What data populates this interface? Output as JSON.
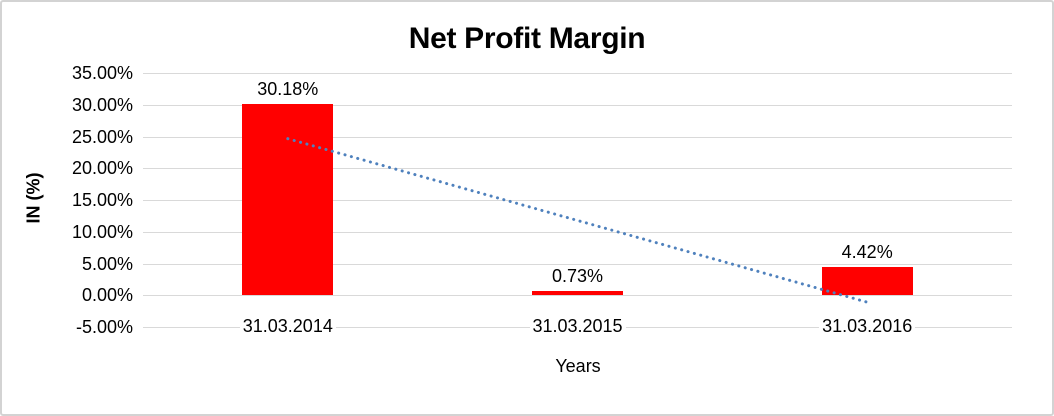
{
  "chart_data": {
    "type": "bar",
    "title": "Net Profit Margin",
    "xlabel": "Years",
    "ylabel": "IN (%)",
    "categories": [
      "31.03.2014",
      "31.03.2015",
      "31.03.2016"
    ],
    "values": [
      30.18,
      0.73,
      4.42
    ],
    "data_labels": [
      "30.18%",
      "0.73%",
      "4.42%"
    ],
    "y_tick_labels": [
      "35.00%",
      "30.00%",
      "25.00%",
      "20.00%",
      "15.00%",
      "10.00%",
      "5.00%",
      "0.00%",
      "-5.00%"
    ],
    "y_tick_values": [
      35,
      30,
      25,
      20,
      15,
      10,
      5,
      0,
      -5
    ],
    "ylim": [
      -5,
      35
    ],
    "grid": "horizontal",
    "legend": "none",
    "trendline": {
      "type": "linear",
      "style": "dotted",
      "start_value": 24.66,
      "end_value": -1.1
    },
    "colors": {
      "bar": "#FF0000",
      "trendline": "#4F81BD",
      "gridline": "#D9D9D9",
      "text": "#000000",
      "background": "#FFFFFF",
      "frame_border": "#D3D3D3"
    }
  }
}
